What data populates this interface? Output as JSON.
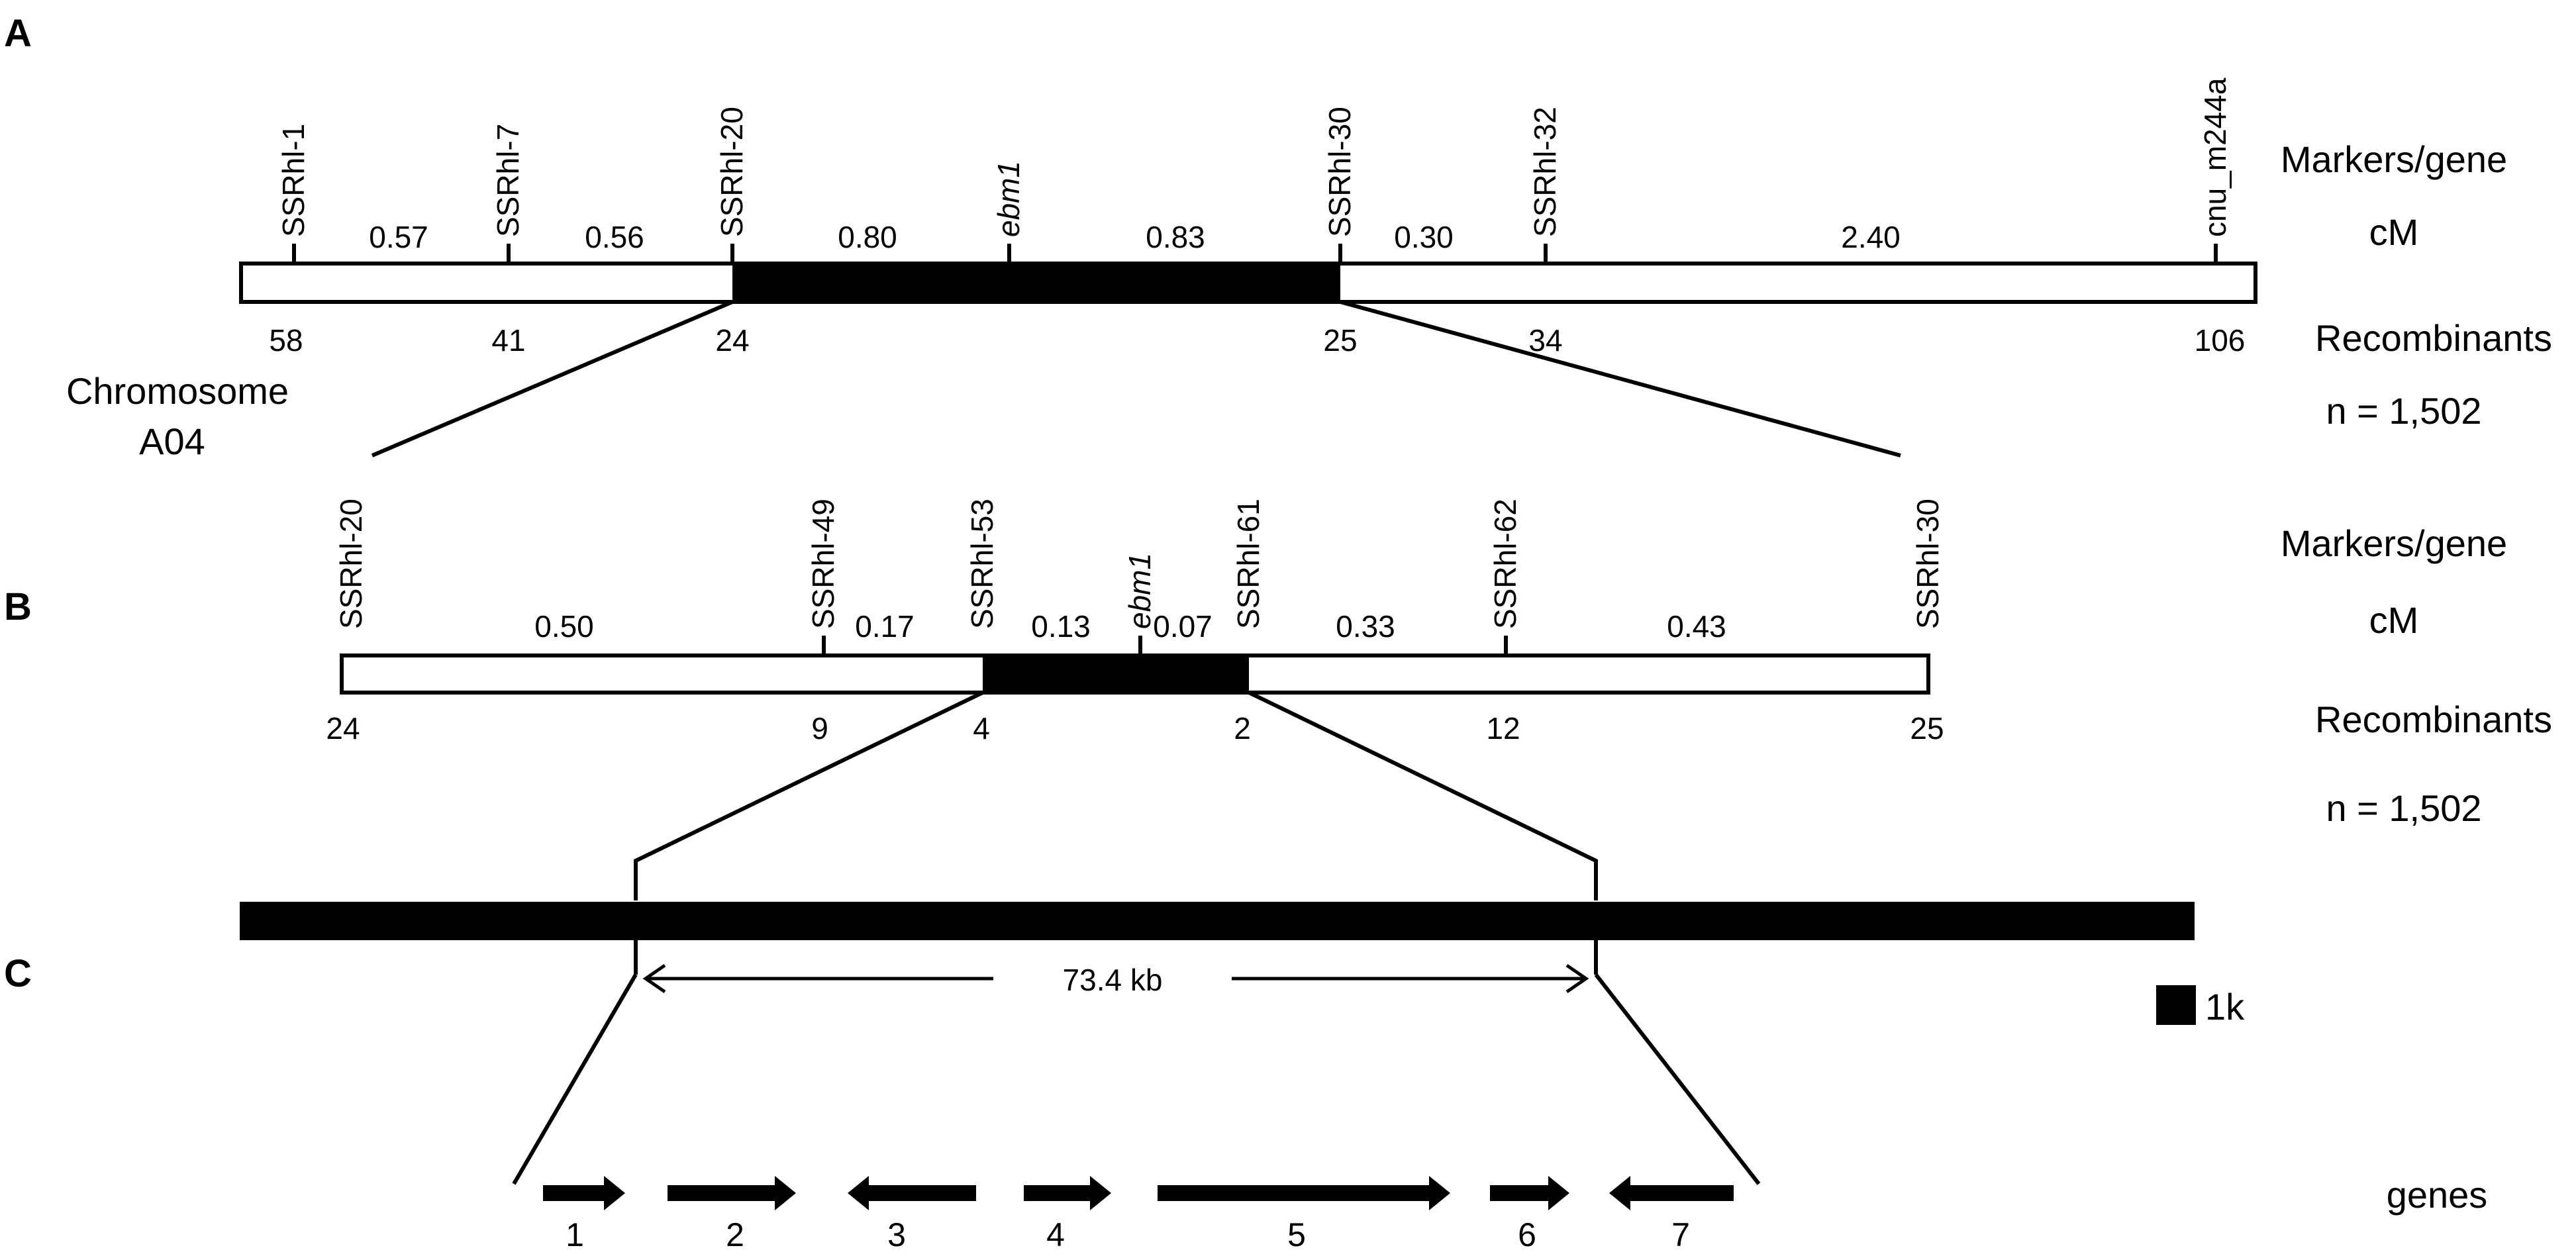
{
  "panel_a": {
    "letter": "A",
    "markers": [
      "SSRhl-1",
      "SSRhl-7",
      "SSRhl-20",
      "ebm1",
      "SSRhl-30",
      "SSRhl-32",
      "cnu_m244a"
    ],
    "distances_cm": [
      "0.57",
      "0.56",
      "0.80",
      "0.83",
      "0.30",
      "2.40"
    ],
    "recombinants": [
      "58",
      "41",
      "24",
      "25",
      "34",
      "106"
    ],
    "chromosome_label_1": "Chromosome",
    "chromosome_label_2": "A04",
    "side_markers": "Markers/gene",
    "side_cm": "cM",
    "side_recombinants": "Recombinants",
    "side_n": "n = 1,502"
  },
  "panel_b": {
    "letter": "B",
    "markers": [
      "SSRhl-20",
      "SSRhl-49",
      "SSRhl-53",
      "ebm1",
      "SSRhl-61",
      "SSRhl-62",
      "SSRhl-30"
    ],
    "distances_cm": [
      "0.50",
      "0.17",
      "0.13",
      "0.07",
      "0.33",
      "0.43"
    ],
    "recombinants": [
      "24",
      "9",
      "4",
      "2",
      "12",
      "25"
    ],
    "side_markers": "Markers/gene",
    "side_cm": "cM",
    "side_recombinants": "Recombinants",
    "side_n": "n = 1,502"
  },
  "panel_c": {
    "letter": "C",
    "interval": "73.4 kb",
    "scale_label": "1k",
    "genes_label": "genes",
    "genes": [
      {
        "label": "1",
        "direction": "right"
      },
      {
        "label": "2",
        "direction": "right"
      },
      {
        "label": "3",
        "direction": "left"
      },
      {
        "label": "4",
        "direction": "right"
      },
      {
        "label": "5",
        "direction": "right"
      },
      {
        "label": "6",
        "direction": "right"
      },
      {
        "label": "7",
        "direction": "left"
      }
    ]
  }
}
